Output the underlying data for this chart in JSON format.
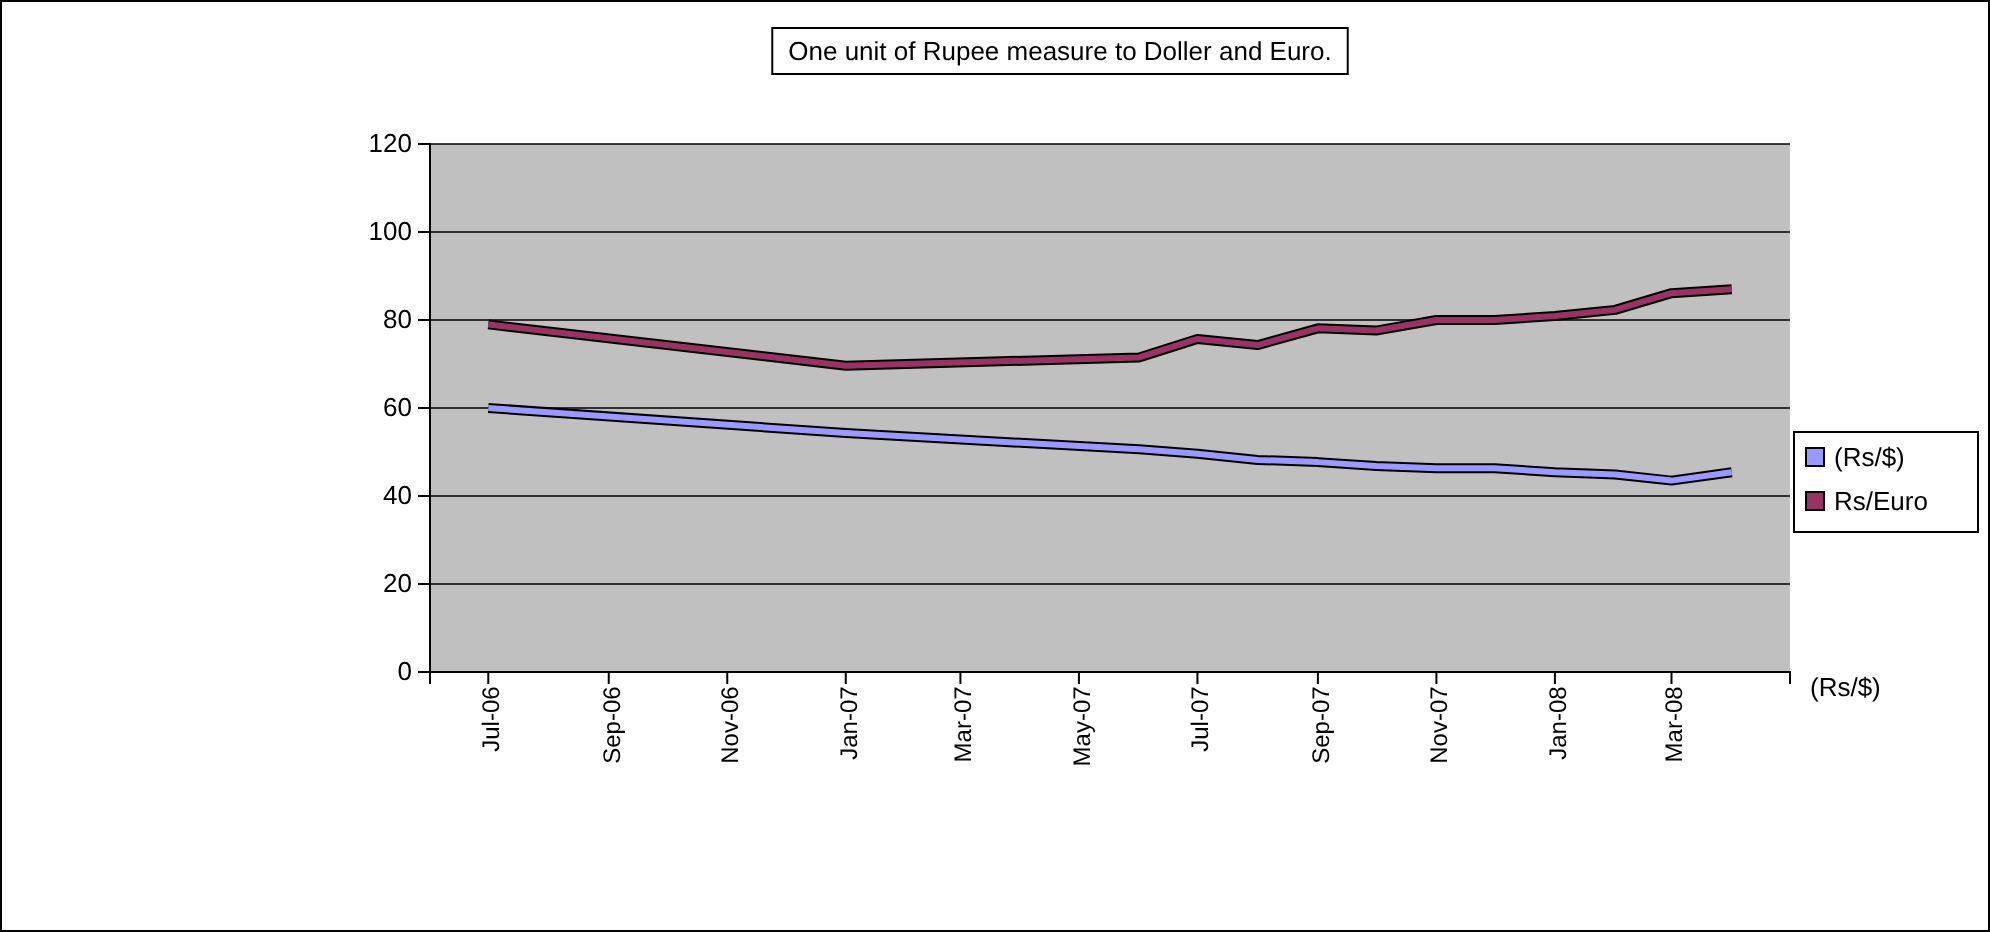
{
  "chart_data": {
    "type": "line",
    "title": "One unit of Rupee measure to Doller and Euro.",
    "x": [
      "2006-07",
      "2007-01",
      "2007-06",
      "2007-07",
      "2007-08",
      "2007-09",
      "2007-10",
      "2007-11",
      "2007-12",
      "2008-01",
      "2008-02",
      "2008-03",
      "2008-04"
    ],
    "series": [
      {
        "name": "(Rs/$)",
        "color": "#9999ff",
        "values": [
          60,
          54.3,
          50.6,
          49.6,
          48.2,
          47.7,
          46.8,
          46.3,
          46.3,
          45.4,
          44.9,
          43.5,
          45.4
        ]
      },
      {
        "name": "Rs/Euro",
        "color": "#993366",
        "values": [
          79,
          69.6,
          71.5,
          75.7,
          74.3,
          78.1,
          77.6,
          80,
          80,
          80.9,
          82.3,
          86.1,
          87
        ]
      }
    ],
    "xlim": [
      "2006-06",
      "2008-05"
    ],
    "xticks": [
      {
        "value": "2006-07",
        "label": "Jul-06"
      },
      {
        "value": "2006-09",
        "label": "Sep-06"
      },
      {
        "value": "2006-11",
        "label": "Nov-06"
      },
      {
        "value": "2007-01",
        "label": "Jan-07"
      },
      {
        "value": "2007-03",
        "label": "Mar-07"
      },
      {
        "value": "2007-05",
        "label": "May-07"
      },
      {
        "value": "2007-07",
        "label": "Jul-07"
      },
      {
        "value": "2007-09",
        "label": "Sep-07"
      },
      {
        "value": "2007-11",
        "label": "Nov-07"
      },
      {
        "value": "2008-01",
        "label": "Jan-08"
      },
      {
        "value": "2008-03",
        "label": "Mar-08"
      }
    ],
    "ylim": [
      0,
      120
    ],
    "yticks": [
      0,
      20,
      40,
      60,
      80,
      100,
      120
    ],
    "grid": "y",
    "legend": "right",
    "annotations": [
      "(Rs/$)"
    ]
  }
}
